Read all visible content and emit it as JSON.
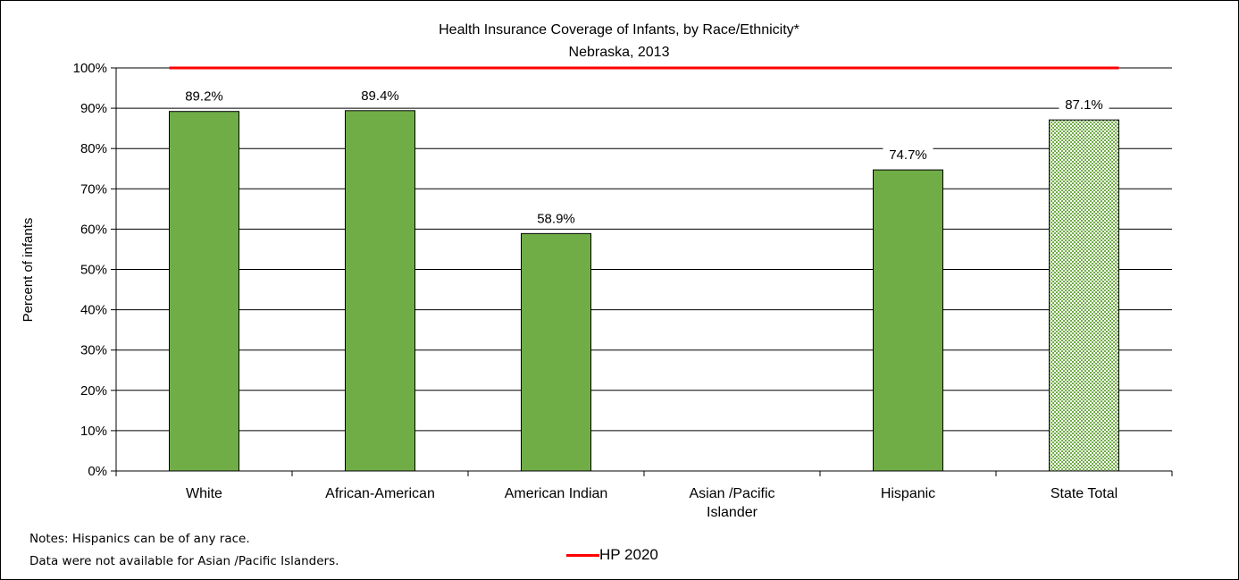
{
  "colors": {
    "bar": "#70AD47",
    "bar_stroke": "#000000",
    "pattern_dot": "#70AD47",
    "target_line": "#FF0000",
    "grid": "#000000"
  },
  "notes": {
    "line1": "Notes: Hispanics can be of any race.",
    "line2": "Data were not available for Asian /Pacific Islanders."
  },
  "chart_data": {
    "type": "bar",
    "title": "Health Insurance Coverage of Infants, by Race/Ethnicity*",
    "subtitle": "Nebraska, 2013",
    "xlabel": "",
    "ylabel": "Percent of infants",
    "ylim": [
      0,
      100
    ],
    "yticks": [
      "0%",
      "10%",
      "20%",
      "30%",
      "40%",
      "50%",
      "60%",
      "70%",
      "80%",
      "90%",
      "100%"
    ],
    "grid": true,
    "categories": [
      [
        "White"
      ],
      [
        "African-American"
      ],
      [
        "American Indian"
      ],
      [
        "Asian /Pacific",
        "Islander"
      ],
      [
        "Hispanic"
      ],
      [
        "State Total"
      ]
    ],
    "values": [
      89.2,
      89.4,
      58.9,
      null,
      74.7,
      87.1
    ],
    "data_labels": [
      "89.2%",
      "89.4%",
      "58.9%",
      "",
      "74.7%",
      "87.1%"
    ],
    "patterned": [
      false,
      false,
      false,
      false,
      false,
      true
    ],
    "target_line": {
      "name": "HP 2020",
      "value": 100
    },
    "legend": {
      "position": "bottom",
      "entries": [
        "HP 2020"
      ]
    }
  }
}
